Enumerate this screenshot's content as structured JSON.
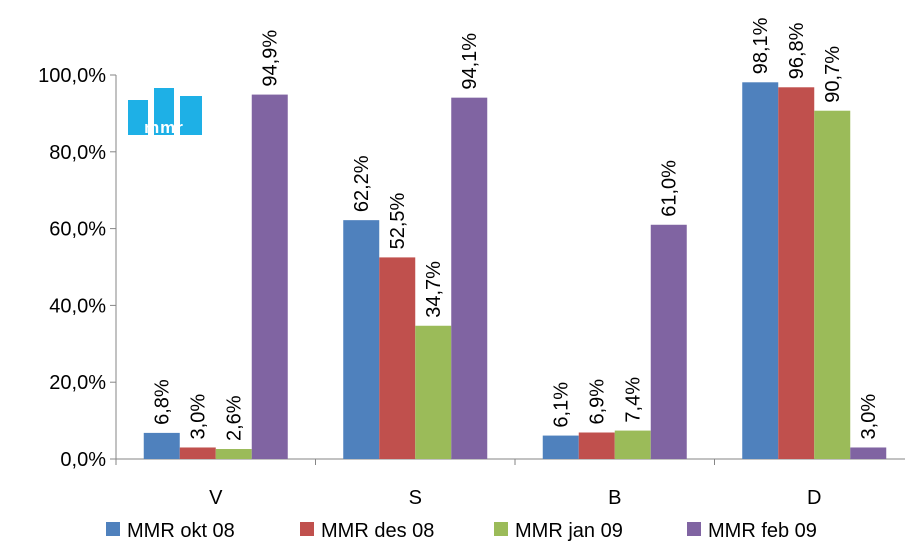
{
  "chart_data": {
    "type": "bar",
    "categories": [
      "V",
      "S",
      "B",
      "D"
    ],
    "series": [
      {
        "name": "MMR okt 08",
        "color": "#4F81BD",
        "values": [
          6.8,
          62.2,
          6.1,
          98.1
        ],
        "labels": [
          "6,8%",
          "62,2%",
          "6,1%",
          "98,1%"
        ]
      },
      {
        "name": "MMR des 08",
        "color": "#C0504D",
        "values": [
          3.0,
          52.5,
          6.9,
          96.8
        ],
        "labels": [
          "3,0%",
          "52,5%",
          "6,9%",
          "96,8%"
        ]
      },
      {
        "name": "MMR jan 09",
        "color": "#9BBB59",
        "values": [
          2.6,
          34.7,
          7.4,
          90.7
        ],
        "labels": [
          "2,6%",
          "34,7%",
          "7,4%",
          "90,7%"
        ]
      },
      {
        "name": "MMR feb 09",
        "color": "#8064A2",
        "values": [
          94.9,
          94.1,
          61.0,
          3.0
        ],
        "labels": [
          "94,9%",
          "94,1%",
          "61,0%",
          "3,0%"
        ]
      }
    ],
    "y_ticks": [
      {
        "value": 0,
        "label": "0,0%"
      },
      {
        "value": 20,
        "label": "20,0%"
      },
      {
        "value": 40,
        "label": "40,0%"
      },
      {
        "value": 60,
        "label": "60,0%"
      },
      {
        "value": 80,
        "label": "80,0%"
      },
      {
        "value": 100,
        "label": "100,0%"
      }
    ],
    "ylim": [
      0,
      100
    ],
    "grid": false,
    "legend_position": "bottom",
    "title": "",
    "xlabel": "",
    "ylabel": ""
  },
  "logo": {
    "text": "mmr",
    "color": "#1EB0E6",
    "icon": "mmr-logo-icon"
  }
}
